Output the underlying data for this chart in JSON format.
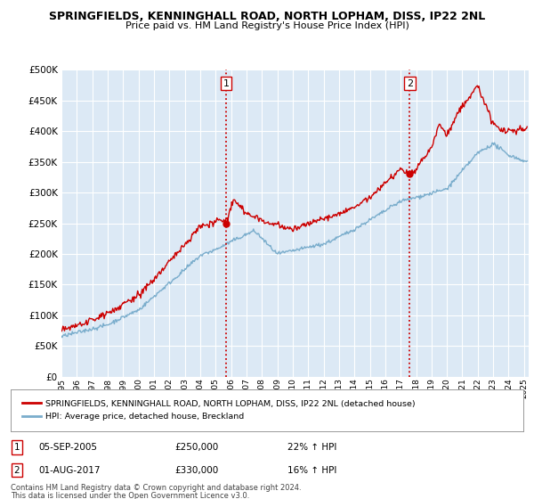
{
  "title1": "SPRINGFIELDS, KENNINGHALL ROAD, NORTH LOPHAM, DISS, IP22 2NL",
  "title2": "Price paid vs. HM Land Registry's House Price Index (HPI)",
  "ylim": [
    0,
    500000
  ],
  "xlim_start": 1995.0,
  "xlim_end": 2025.3,
  "plot_bg_color": "#dce9f5",
  "grid_color": "#ffffff",
  "red_line_color": "#cc0000",
  "blue_line_color": "#7aadcc",
  "marker1_year": 2005.67,
  "marker1_value": 250000,
  "marker2_year": 2017.58,
  "marker2_value": 330000,
  "vline_color": "#cc0000",
  "legend_line1": "SPRINGFIELDS, KENNINGHALL ROAD, NORTH LOPHAM, DISS, IP22 2NL (detached house)",
  "legend_line2": "HPI: Average price, detached house, Breckland",
  "row1_num": "1",
  "row1_date": "05-SEP-2005",
  "row1_price": "£250,000",
  "row1_change": "22% ↑ HPI",
  "row2_num": "2",
  "row2_date": "01-AUG-2017",
  "row2_price": "£330,000",
  "row2_change": "16% ↑ HPI",
  "footnote1": "Contains HM Land Registry data © Crown copyright and database right 2024.",
  "footnote2": "This data is licensed under the Open Government Licence v3.0."
}
